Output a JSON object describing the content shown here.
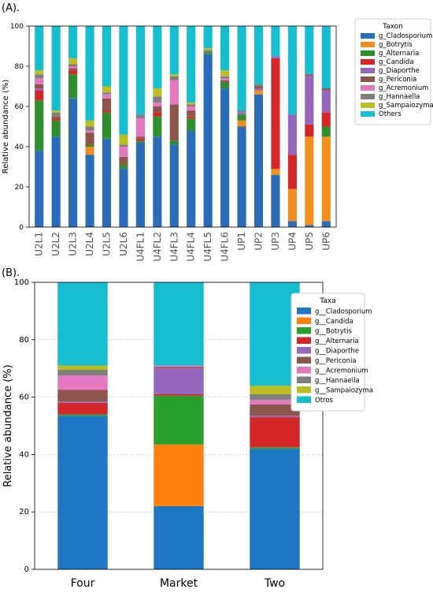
{
  "panel_a_label": "(A).",
  "panel_b_label": "(B).",
  "chart_data": [
    {
      "type": "bar",
      "stacked": true,
      "panel": "(A).",
      "ylabel": "Relative abundance (%)",
      "ylim": [
        0,
        100
      ],
      "yticks": [
        0,
        20,
        40,
        60,
        80,
        100
      ],
      "grid": false,
      "legend_title": "Taxon",
      "legend_position": "outside-right",
      "categories": [
        "U2L1",
        "U2L2",
        "U2L3",
        "U2L4",
        "U2L5",
        "U2L6",
        "U4FL1",
        "U4FL2",
        "U4FL3",
        "U4FL4",
        "U4FL5",
        "U4FL6",
        "UP1",
        "UP2",
        "UP3",
        "UP4",
        "UP5",
        "UP6"
      ],
      "series": [
        {
          "name": "g_Cladosporium",
          "color": "#2b6cb8",
          "values": [
            38,
            45,
            64,
            36,
            44,
            29,
            42,
            45,
            41,
            48,
            86,
            69,
            50,
            66,
            26,
            3,
            1,
            3
          ]
        },
        {
          "name": "g_Botrytis",
          "color": "#f28e1c",
          "values": [
            0,
            0,
            0,
            4,
            0,
            0,
            0,
            0,
            0,
            0,
            0,
            0,
            3,
            2,
            3,
            16,
            44,
            42
          ]
        },
        {
          "name": "g_Alternaria",
          "color": "#2f8f2f",
          "values": [
            25,
            8,
            12,
            1,
            13,
            2,
            1,
            10,
            2,
            6,
            1,
            3,
            3,
            0,
            0,
            0,
            0,
            5
          ]
        },
        {
          "name": "g_Candida",
          "color": "#d62728",
          "values": [
            5,
            1,
            2,
            0,
            1,
            0,
            1,
            2,
            0,
            1,
            0,
            0,
            0,
            0,
            55,
            17,
            6,
            7
          ]
        },
        {
          "name": "g_Diaporthe",
          "color": "#9467bd",
          "values": [
            1,
            0,
            0,
            0,
            0,
            0,
            0,
            0,
            0,
            0,
            0,
            0,
            1,
            1,
            1,
            20,
            24,
            11
          ]
        },
        {
          "name": "g_Periconia",
          "color": "#8c564b",
          "values": [
            2,
            1,
            1,
            6,
            6,
            4,
            1,
            3,
            18,
            3,
            0,
            1,
            0,
            1,
            0,
            0,
            1,
            1
          ]
        },
        {
          "name": "g_Acremonium",
          "color": "#e377c2",
          "values": [
            3,
            0,
            1,
            1,
            2,
            5,
            9,
            2,
            12,
            2,
            0,
            1,
            0,
            0,
            0,
            0,
            0,
            0
          ]
        },
        {
          "name": "g_Hannaella",
          "color": "#7f7f7f",
          "values": [
            2,
            2,
            1,
            2,
            1,
            1,
            2,
            3,
            2,
            1,
            1,
            1,
            1,
            1,
            0,
            0,
            0,
            0
          ]
        },
        {
          "name": "g_Sampaiozyma",
          "color": "#bcbd22",
          "values": [
            2,
            1,
            3,
            3,
            3,
            5,
            0,
            4,
            1,
            1,
            1,
            3,
            0,
            0,
            0,
            0,
            0,
            0
          ]
        },
        {
          "name": "Others",
          "color": "#17becf",
          "values": [
            22,
            42,
            16,
            47,
            30,
            54,
            44,
            31,
            24,
            38,
            11,
            22,
            42,
            29,
            15,
            44,
            24,
            31
          ]
        }
      ]
    },
    {
      "type": "bar",
      "stacked": true,
      "panel": "(B).",
      "ylabel": "Relative abundance (%)",
      "ylim": [
        0,
        100
      ],
      "yticks": [
        0,
        20,
        40,
        60,
        80,
        100
      ],
      "grid": true,
      "legend_title": "Taxa",
      "legend_position": "top-right",
      "categories": [
        "Four",
        "Market",
        "Two"
      ],
      "series": [
        {
          "name": "g__Cladosporium",
          "color": "#1f77c4",
          "values": [
            53.5,
            22,
            42
          ]
        },
        {
          "name": "g__Candida",
          "color": "#ff7f0e",
          "values": [
            0,
            21.5,
            0
          ]
        },
        {
          "name": "g__Botrytis",
          "color": "#2ca02c",
          "values": [
            0.5,
            17,
            0.5
          ]
        },
        {
          "name": "g__Alternaria",
          "color": "#d62728",
          "values": [
            4,
            0.5,
            10.5
          ]
        },
        {
          "name": "g__Diaporthe",
          "color": "#9467bd",
          "values": [
            0.5,
            9,
            0.5
          ]
        },
        {
          "name": "g__Periconia",
          "color": "#8c564b",
          "values": [
            4,
            0.5,
            4
          ]
        },
        {
          "name": "g__Acremonium",
          "color": "#e377c2",
          "values": [
            5,
            0.5,
            1.5
          ]
        },
        {
          "name": "g__Hannaella",
          "color": "#7f7f7f",
          "values": [
            2,
            0,
            2
          ]
        },
        {
          "name": "g__Sampaiozyma",
          "color": "#bcbd22",
          "values": [
            1.5,
            0,
            3
          ]
        },
        {
          "name": "Otros",
          "color": "#17becf",
          "values": [
            29,
            29,
            36
          ]
        }
      ]
    }
  ]
}
